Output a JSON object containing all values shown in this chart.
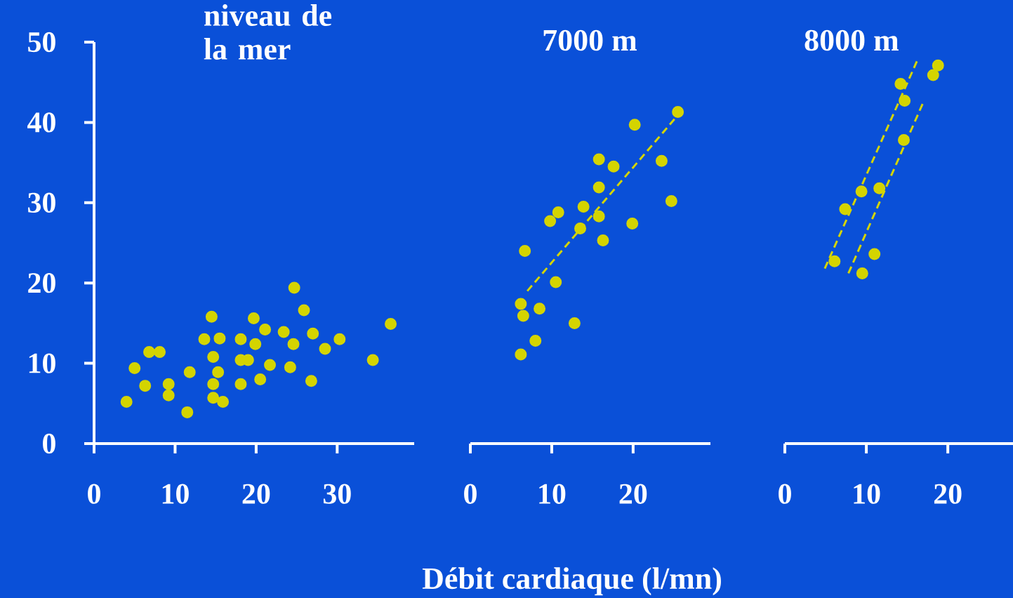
{
  "chart_data": [
    {
      "type": "scatter",
      "title": "niveau de la mer",
      "xlim": [
        0,
        39.5
      ],
      "ylim": [
        0,
        50
      ],
      "xticks": [
        0,
        10,
        20,
        30
      ],
      "yticks": [
        0,
        10,
        20,
        30,
        40,
        50
      ],
      "series": [
        {
          "color": "#d4d400",
          "marker": "circle",
          "x": [
            4.0,
            5.0,
            6.8,
            8.1,
            6.3,
            9.2,
            9.2,
            11.5,
            14.5,
            13.6,
            15.5,
            14.7,
            11.8,
            14.7,
            14.7,
            15.9,
            15.3,
            18.1,
            19.0,
            18.1,
            18.1,
            19.7,
            21.1,
            19.9,
            20.5,
            21.7,
            23.4,
            24.6,
            24.2,
            26.8,
            24.7,
            25.9,
            27.0,
            28.5,
            30.3,
            34.4,
            36.6
          ],
          "values": [
            5.2,
            9.4,
            11.4,
            11.4,
            7.2,
            7.4,
            6.0,
            3.9,
            15.8,
            13.0,
            13.1,
            10.8,
            8.9,
            7.4,
            5.7,
            5.2,
            8.9,
            10.4,
            10.4,
            7.4,
            13.0,
            15.6,
            14.2,
            12.4,
            8.0,
            9.8,
            13.9,
            12.4,
            9.5,
            7.8,
            19.4,
            16.6,
            13.7,
            11.8,
            13.0,
            10.4,
            14.9
          ]
        }
      ]
    },
    {
      "type": "scatter",
      "title": "7000 m",
      "xlabel": "Débit cardiaque (l/mn)",
      "xlim": [
        0,
        29.5
      ],
      "ylim": [
        0,
        50
      ],
      "xticks": [
        0,
        10,
        20
      ],
      "tick_labels": "x",
      "series": [
        {
          "color": "#d4d400",
          "marker": "circle",
          "x": [
            6.2,
            8.0,
            6.2,
            6.5,
            8.5,
            12.8,
            10.5,
            6.7,
            9.8,
            10.8,
            13.5,
            13.9,
            15.8,
            16.3,
            19.9,
            15.8,
            15.8,
            17.6,
            23.5,
            24.7,
            20.2,
            25.5
          ],
          "values": [
            11.1,
            12.8,
            17.4,
            15.9,
            16.8,
            15.0,
            20.1,
            24.0,
            27.7,
            28.8,
            26.8,
            29.5,
            28.3,
            25.3,
            27.4,
            31.9,
            35.4,
            34.5,
            35.2,
            30.2,
            39.7,
            41.3
          ]
        },
        {
          "type": "line",
          "color": "#d4d400",
          "line_style": "dashed",
          "marker": "none",
          "x": [
            7,
            26
          ],
          "values": [
            19,
            41.5
          ]
        }
      ]
    },
    {
      "type": "scatter",
      "title": "8000 m",
      "xlim": [
        0,
        28
      ],
      "ylim": [
        0,
        50
      ],
      "xticks": [
        0,
        10,
        20
      ],
      "tick_labels": "x",
      "series": [
        {
          "color": "#d4d400",
          "marker": "circle",
          "x": [
            6.1,
            9.5,
            11.0,
            7.4,
            9.4,
            11.6,
            14.6,
            14.2,
            14.7,
            18.2,
            18.8
          ],
          "values": [
            22.7,
            21.2,
            23.6,
            29.2,
            31.4,
            31.8,
            37.8,
            44.8,
            42.7,
            45.9,
            47.1
          ]
        },
        {
          "type": "line",
          "color": "#d4d400",
          "line_style": "dashed",
          "marker": "none",
          "x": [
            4.9,
            16.2
          ],
          "values": [
            21.8,
            47.6
          ]
        },
        {
          "type": "line",
          "color": "#d4d400",
          "line_style": "dashed",
          "marker": "none",
          "x": [
            7.8,
            16.9
          ],
          "values": [
            21.2,
            42.3
          ]
        }
      ]
    }
  ]
}
